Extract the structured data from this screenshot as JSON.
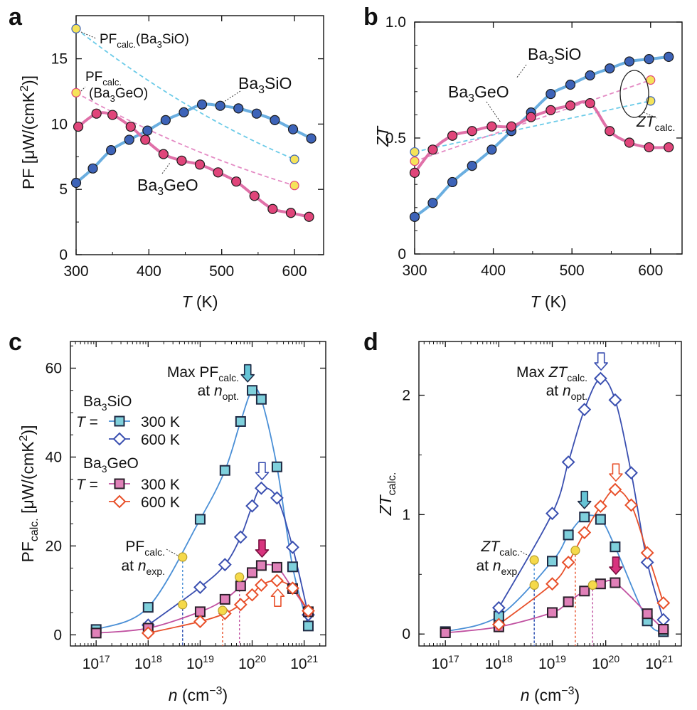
{
  "chart_data": [
    {
      "panel": "a",
      "type": "line",
      "xlabel": {
        "italic": "T",
        "rest": " (K)"
      },
      "ylabel": {
        "main": "PF [μW/(cmK",
        "sup": "2",
        "tail": ")]"
      },
      "xlim": [
        300,
        640
      ],
      "ylim": [
        0,
        18.3
      ],
      "xticks": [
        300,
        400,
        500,
        600
      ],
      "yticks": [
        0,
        5,
        10,
        15
      ],
      "series": [
        {
          "name": "Ba3SiO",
          "kind": "measured",
          "color": "#6aaee0",
          "marker_fill": "#3d63b8",
          "x": [
            300,
            323,
            348,
            373,
            398,
            423,
            448,
            473,
            498,
            523,
            548,
            573,
            598,
            623
          ],
          "y": [
            5.5,
            6.6,
            8.0,
            8.8,
            9.5,
            10.3,
            10.9,
            11.5,
            11.4,
            11.2,
            10.8,
            10.3,
            9.6,
            8.9
          ]
        },
        {
          "name": "Ba3GeO",
          "kind": "measured",
          "color": "#e070a8",
          "marker_fill": "#e0457a",
          "x": [
            303,
            328,
            350,
            375,
            395,
            420,
            445,
            470,
            495,
            520,
            545,
            570,
            595,
            620
          ],
          "y": [
            9.8,
            10.8,
            10.7,
            9.8,
            8.8,
            7.7,
            7.2,
            6.9,
            6.3,
            5.6,
            4.5,
            3.5,
            3.2,
            2.9
          ]
        },
        {
          "name": "PFcalc. (Ba3SiO)",
          "kind": "calc",
          "color": "#6ccbe8",
          "x": [
            300,
            600
          ],
          "y": [
            17.3,
            7.3
          ]
        },
        {
          "name": "PFcalc. (Ba3GeO)",
          "kind": "calc",
          "color": "#e48bc4",
          "x": [
            300,
            600
          ],
          "y": [
            12.4,
            5.3
          ]
        }
      ],
      "labels": {
        "si": {
          "base": "Ba",
          "sub": "3",
          "rest": "SiO"
        },
        "ge": {
          "base": "Ba",
          "sub": "3",
          "rest": "GeO"
        },
        "calc1": {
          "base": "PF",
          "sub": "calc.",
          "rest": "(Ba",
          "sub2": "3",
          "tail": "SiO)"
        },
        "calc2a": {
          "base": "PF",
          "sub": "calc."
        },
        "calc2b": {
          "base": "(Ba",
          "sub": "3",
          "rest": "GeO)"
        }
      }
    },
    {
      "panel": "b",
      "type": "line",
      "xlabel": {
        "italic": "T",
        "rest": " (K)"
      },
      "ylabel": {
        "italic": "ZT"
      },
      "xlim": [
        300,
        640
      ],
      "ylim": [
        0,
        1.0
      ],
      "xticks": [
        300,
        400,
        500,
        600
      ],
      "yticks": [
        "0",
        "0.5",
        "1.0"
      ],
      "series": [
        {
          "name": "Ba3SiO",
          "kind": "measured",
          "color": "#6aaee0",
          "marker_fill": "#3d63b8",
          "x": [
            300,
            323,
            348,
            373,
            398,
            423,
            448,
            473,
            498,
            523,
            548,
            573,
            598,
            623
          ],
          "y": [
            0.16,
            0.22,
            0.31,
            0.38,
            0.45,
            0.53,
            0.61,
            0.69,
            0.73,
            0.77,
            0.8,
            0.83,
            0.84,
            0.85
          ]
        },
        {
          "name": "Ba3GeO",
          "kind": "measured",
          "color": "#e070a8",
          "marker_fill": "#e0457a",
          "x": [
            300,
            323,
            348,
            373,
            398,
            423,
            448,
            473,
            498,
            523,
            548,
            573,
            598,
            623
          ],
          "y": [
            0.35,
            0.45,
            0.51,
            0.53,
            0.55,
            0.55,
            0.59,
            0.62,
            0.64,
            0.65,
            0.53,
            0.48,
            0.46,
            0.46
          ]
        },
        {
          "name": "ZTcalc. (Ba3SiO)",
          "kind": "calc",
          "color": "#6ccbe8",
          "x": [
            300,
            600
          ],
          "y": [
            0.44,
            0.66
          ]
        },
        {
          "name": "ZTcalc. (Ba3GeO)",
          "kind": "calc",
          "color": "#e48bc4",
          "x": [
            300,
            600
          ],
          "y": [
            0.4,
            0.75
          ]
        }
      ],
      "labels": {
        "si": {
          "base": "Ba",
          "sub": "3",
          "rest": "SiO"
        },
        "ge": {
          "base": "Ba",
          "sub": "3",
          "rest": "GeO"
        },
        "calc": {
          "base": "ZT",
          "sub": "calc."
        }
      }
    },
    {
      "panel": "c",
      "type": "line",
      "xscale": "log",
      "xlabel": {
        "italic": "n",
        "rest": " (cm",
        "sup": "−3",
        "tail": ")"
      },
      "ylabel": {
        "main": "PF",
        "sub": "calc.",
        "rest": " [μW/(cmK",
        "sup": "2",
        "tail": ")]"
      },
      "xlim": [
        3.2e+16,
        2.6e+21
      ],
      "ylim": [
        -2.5,
        66
      ],
      "xticks": [
        {
          "b": "10",
          "e": "17"
        },
        {
          "b": "10",
          "e": "18"
        },
        {
          "b": "10",
          "e": "19"
        },
        {
          "b": "10",
          "e": "20"
        },
        {
          "b": "10",
          "e": "21"
        }
      ],
      "yticks": [
        0,
        20,
        40,
        60
      ],
      "series": [
        {
          "name": "Ba3SiO 300 K",
          "marker": "square",
          "fill": "#7fd0dc",
          "stroke": "#1f2a44",
          "line": "#4a8fd6",
          "x": [
            1e+17,
            1e+18,
            1e+19,
            3e+19,
            6e+19,
            1e+20,
            1.5e+20,
            3e+20,
            6e+20,
            1.2e+21
          ],
          "y": [
            1.2,
            6.2,
            26,
            37,
            48,
            55,
            53,
            37.8,
            15.3,
            2.0
          ]
        },
        {
          "name": "Ba3SiO 600 K",
          "marker": "diamond",
          "fill": "#ffffff",
          "stroke": "#3a4fb0",
          "line": "#3a4fb0",
          "x": [
            1e+18,
            1e+19,
            3e+19,
            6e+19,
            1e+20,
            1.5e+20,
            3e+20,
            6e+20,
            1.2e+21
          ],
          "y": [
            2.2,
            10.7,
            15.8,
            22,
            29,
            33,
            30.8,
            19.7,
            4.5
          ]
        },
        {
          "name": "Ba3GeO 300 K",
          "marker": "square",
          "fill": "#e080b8",
          "stroke": "#2a1f2a",
          "line": "#c050a0",
          "x": [
            1e+17,
            1e+18,
            1e+19,
            3e+19,
            6e+19,
            1e+20,
            1.5e+20,
            3e+20,
            6e+20,
            1.2e+21
          ],
          "y": [
            0.4,
            1.5,
            5.2,
            8,
            11,
            14,
            15.6,
            15.2,
            10.4,
            5.2
          ]
        },
        {
          "name": "Ba3GeO 600 K",
          "marker": "diamond",
          "fill": "#ffffff",
          "stroke": "#e8502a",
          "line": "#e8502a",
          "x": [
            1e+18,
            1e+19,
            3e+19,
            6e+19,
            1e+20,
            1.5e+20,
            3e+20,
            6e+20,
            1.2e+21
          ],
          "y": [
            0.4,
            3,
            4.8,
            6.8,
            9,
            11.2,
            12.2,
            10.5,
            5.4
          ]
        }
      ],
      "exp_points": [
        {
          "x": 4.6e+18,
          "y": 17.5,
          "color": "#4a8fd6"
        },
        {
          "x": 4.6e+18,
          "y": 6.8,
          "color": "#3a4fb0"
        },
        {
          "x": 2.7e+19,
          "y": 5.5,
          "color": "#e8502a"
        },
        {
          "x": 5.7e+19,
          "y": 13,
          "color": "#c050a0"
        }
      ],
      "arrows": [
        {
          "x": 8.2e+19,
          "y": 55,
          "fill": "#66c4d6",
          "stroke": "#1f2a44",
          "dir": "down"
        },
        {
          "x": 1.55e+20,
          "y": 33,
          "fill": "#ffffff",
          "stroke": "#3a4fb0",
          "dir": "down"
        },
        {
          "x": 1.55e+20,
          "y": 15.6,
          "fill": "#d8337e",
          "stroke": "#7a1040",
          "dir": "down"
        },
        {
          "x": 3.1e+20,
          "y": 12.2,
          "fill": "#ffffff",
          "stroke": "#e8502a",
          "dir": "up"
        }
      ],
      "legend": {
        "si": {
          "base": "Ba",
          "sub": "3",
          "rest": "SiO"
        },
        "ge": {
          "base": "Ba",
          "sub": "3",
          "rest": "GeO"
        },
        "t_eq": {
          "italic": "T",
          "rest": " ="
        },
        "k300": "300 K",
        "k600": "600 K"
      },
      "annotations": {
        "max": {
          "pre": "Max PF",
          "sub": "calc."
        },
        "at_opt": {
          "pre": "at ",
          "italic": "n",
          "sub": "opt."
        },
        "pf_calc": {
          "pre": "PF",
          "sub": "calc."
        },
        "at_exp": {
          "pre": "at ",
          "italic": "n",
          "sub": "exp."
        }
      }
    },
    {
      "panel": "d",
      "type": "line",
      "xscale": "log",
      "xlabel": {
        "italic": "n",
        "rest": " (cm",
        "sup": "−3",
        "tail": ")"
      },
      "ylabel": {
        "italic": "ZT",
        "sub": "calc."
      },
      "xlim": [
        3.2e+16,
        2.6e+21
      ],
      "ylim": [
        -0.1,
        2.45
      ],
      "xticks": [
        {
          "b": "10",
          "e": "17"
        },
        {
          "b": "10",
          "e": "18"
        },
        {
          "b": "10",
          "e": "19"
        },
        {
          "b": "10",
          "e": "20"
        },
        {
          "b": "10",
          "e": "21"
        }
      ],
      "yticks": [
        0,
        1,
        2
      ],
      "series": [
        {
          "name": "Ba3SiO 300 K",
          "marker": "square",
          "fill": "#7fd0dc",
          "stroke": "#1f2a44",
          "line": "#4a8fd6",
          "x": [
            1e+17,
            1e+18,
            1e+19,
            2e+19,
            4e+19,
            8e+19,
            1.5e+20,
            6e+20,
            1.2e+21
          ],
          "y": [
            0.02,
            0.15,
            0.61,
            0.83,
            0.98,
            0.96,
            0.73,
            0.11,
            0.02
          ]
        },
        {
          "name": "Ba3SiO 600 K",
          "marker": "diamond",
          "fill": "#ffffff",
          "stroke": "#3a4fb0",
          "line": "#3a4fb0",
          "x": [
            1e+18,
            1e+19,
            2e+19,
            4e+19,
            8e+19,
            1.5e+20,
            3e+20,
            6e+20,
            1.2e+21
          ],
          "y": [
            0.22,
            1.01,
            1.44,
            1.88,
            2.14,
            1.96,
            1.35,
            0.6,
            0.12
          ]
        },
        {
          "name": "Ba3GeO 300 K",
          "marker": "square",
          "fill": "#e080b8",
          "stroke": "#2a1f2a",
          "line": "#c050a0",
          "x": [
            1e+17,
            1e+18,
            1e+19,
            2e+19,
            4e+19,
            8e+19,
            1.5e+20,
            6e+20,
            1.2e+21
          ],
          "y": [
            0.01,
            0.06,
            0.18,
            0.27,
            0.36,
            0.42,
            0.43,
            0.17,
            0.04
          ]
        },
        {
          "name": "Ba3GeO 600 K",
          "marker": "diamond",
          "fill": "#ffffff",
          "stroke": "#e8502a",
          "line": "#e8502a",
          "x": [
            1e+18,
            1e+19,
            2e+19,
            4e+19,
            8e+19,
            1.5e+20,
            3e+20,
            6e+20,
            1.2e+21
          ],
          "y": [
            0.08,
            0.42,
            0.6,
            0.85,
            1.07,
            1.21,
            1.08,
            0.68,
            0.26
          ]
        }
      ],
      "exp_points": [
        {
          "x": 4.6e+18,
          "y": 0.62,
          "color": "#4a8fd6"
        },
        {
          "x": 4.6e+18,
          "y": 0.41,
          "color": "#3a4fb0"
        },
        {
          "x": 2.7e+19,
          "y": 0.7,
          "color": "#e8502a"
        },
        {
          "x": 5.7e+19,
          "y": 0.41,
          "color": "#c050a0"
        }
      ],
      "arrows": [
        {
          "x": 8.2e+19,
          "y": 2.14,
          "fill": "#ffffff",
          "stroke": "#3a4fb0",
          "dir": "down"
        },
        {
          "x": 4e+19,
          "y": 0.98,
          "fill": "#66c4d6",
          "stroke": "#1f2a44",
          "dir": "down"
        },
        {
          "x": 1.55e+20,
          "y": 1.21,
          "fill": "#ffffff",
          "stroke": "#e8502a",
          "dir": "down"
        },
        {
          "x": 1.55e+20,
          "y": 0.43,
          "fill": "#d8337e",
          "stroke": "#7a1040",
          "dir": "down"
        }
      ],
      "annotations": {
        "max": {
          "pre": "Max ",
          "italic": "ZT",
          "sub": "calc."
        },
        "at_opt": {
          "pre": "at ",
          "italic": "n",
          "sub": "opt."
        },
        "zt_calc": {
          "italic": "ZT",
          "sub": "calc."
        },
        "at_exp": {
          "pre": "at ",
          "italic": "n",
          "sub": "exp."
        }
      }
    }
  ],
  "panel_labels": [
    "a",
    "b",
    "c",
    "d"
  ]
}
